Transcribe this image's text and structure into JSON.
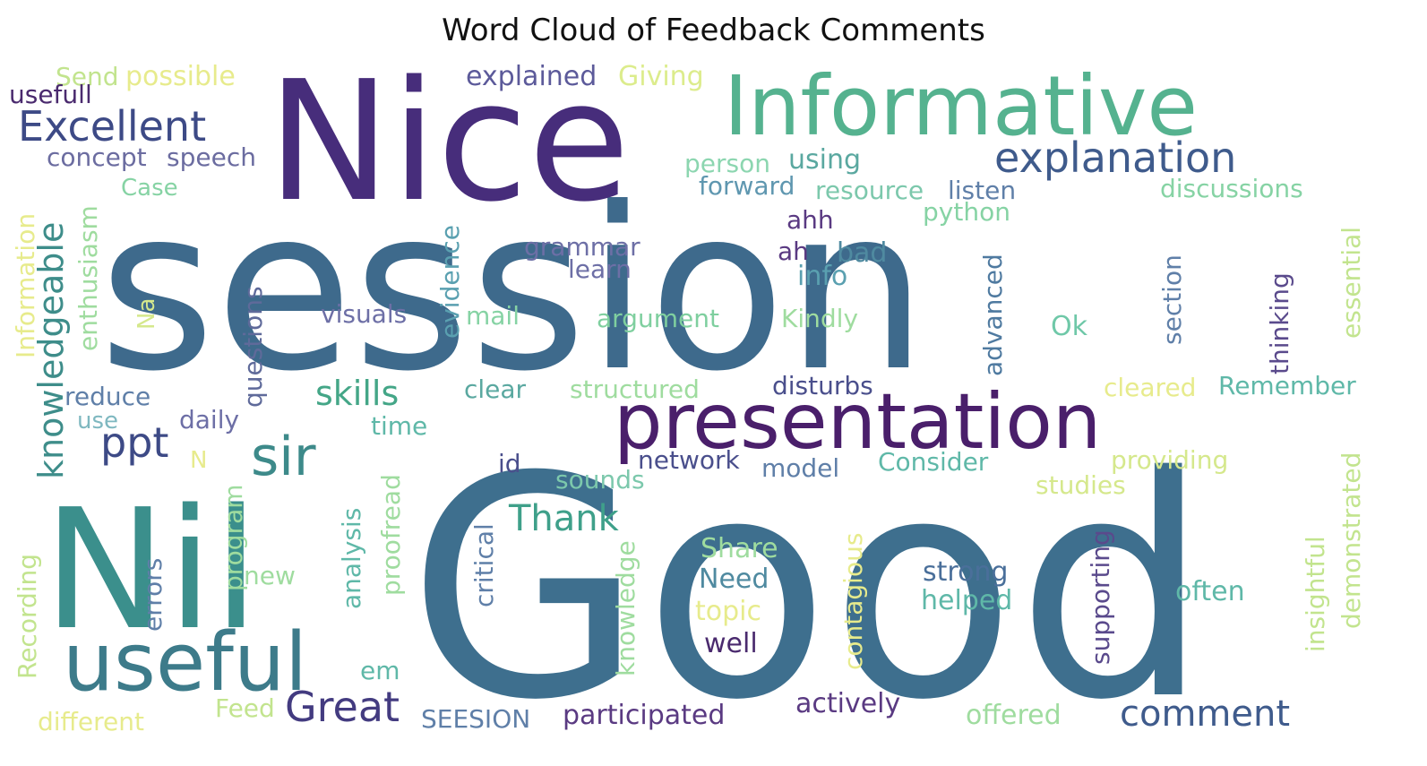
{
  "title": "Word Cloud of Feedback Comments",
  "palette": [
    "#440154",
    "#3b528b",
    "#21918c",
    "#5ec962",
    "#fde725"
  ],
  "words": [
    {
      "text": "session",
      "color": "#3e6a8c"
    },
    {
      "text": "Good",
      "color": "#3e6f8e"
    },
    {
      "text": "Nice",
      "color": "#472d7b"
    },
    {
      "text": "Informative",
      "color": "#55b28f"
    },
    {
      "text": "Nil",
      "color": "#3b8f8c"
    },
    {
      "text": "presentation",
      "color": "#4a1f6b"
    },
    {
      "text": "useful",
      "color": "#3d7b8a"
    },
    {
      "text": "explanation",
      "color": "#3f5b8c"
    },
    {
      "text": "Excellent",
      "color": "#3d4a86"
    },
    {
      "text": "sir",
      "color": "#3d8a8a"
    },
    {
      "text": "Great",
      "color": "#433b80"
    },
    {
      "text": "ppt",
      "color": "#3d4a86"
    },
    {
      "text": "knowledgeable",
      "color": "#3e8d8a"
    },
    {
      "text": "skills",
      "color": "#44a687"
    },
    {
      "text": "Thank",
      "color": "#3fa08a"
    },
    {
      "text": "comment",
      "color": "#3f5b8c"
    },
    {
      "text": "explained",
      "color": "#5c5a9a"
    },
    {
      "text": "Giving",
      "color": "#dcec8c"
    },
    {
      "text": "possible",
      "color": "#e7eb8c"
    },
    {
      "text": "Send",
      "color": "#c2e48e"
    },
    {
      "text": "usefull",
      "color": "#4a2a6e"
    },
    {
      "text": "concept",
      "color": "#6b6ca0"
    },
    {
      "text": "speech",
      "color": "#6b6ca0"
    },
    {
      "text": "Case",
      "color": "#86d3a4"
    },
    {
      "text": "person",
      "color": "#8cd6b0"
    },
    {
      "text": "using",
      "color": "#5aa8a0"
    },
    {
      "text": "forward",
      "color": "#5f97b0"
    },
    {
      "text": "resource",
      "color": "#7cc8ac"
    },
    {
      "text": "listen",
      "color": "#5f7fa8"
    },
    {
      "text": "discussions",
      "color": "#86d3a4"
    },
    {
      "text": "ahh",
      "color": "#5a3a82"
    },
    {
      "text": "python",
      "color": "#86d3a4"
    },
    {
      "text": "grammar",
      "color": "#6d6fa6"
    },
    {
      "text": "learn",
      "color": "#6d6fa6"
    },
    {
      "text": "ah",
      "color": "#5a3a82"
    },
    {
      "text": "bad",
      "color": "#4f8aa0"
    },
    {
      "text": "info",
      "color": "#5aa0b0"
    },
    {
      "text": "visuals",
      "color": "#6d6fa6"
    },
    {
      "text": "mail",
      "color": "#86d3a4"
    },
    {
      "text": "argument",
      "color": "#7fcf9f"
    },
    {
      "text": "Kindly",
      "color": "#9fdc9f"
    },
    {
      "text": "Ok",
      "color": "#6fc8a8"
    },
    {
      "text": "reduce",
      "color": "#5f7fa8"
    },
    {
      "text": "use",
      "color": "#7fb8c0"
    },
    {
      "text": "daily",
      "color": "#6d6fa6"
    },
    {
      "text": "clear",
      "color": "#5aa8a0"
    },
    {
      "text": "structured",
      "color": "#9fdc9f"
    },
    {
      "text": "disturbs",
      "color": "#4a4f8c"
    },
    {
      "text": "cleared",
      "color": "#e7eb8c"
    },
    {
      "text": "Remember",
      "color": "#5fb8a8"
    },
    {
      "text": "time",
      "color": "#5fb8a8"
    },
    {
      "text": "id",
      "color": "#4a4f8c"
    },
    {
      "text": "network",
      "color": "#4a4f8c"
    },
    {
      "text": "model",
      "color": "#5f7fa8"
    },
    {
      "text": "Consider",
      "color": "#5fb8a8"
    },
    {
      "text": "providing",
      "color": "#d5e88c"
    },
    {
      "text": "N",
      "color": "#e7eb8c"
    },
    {
      "text": "sounds",
      "color": "#7cc8ac"
    },
    {
      "text": "studies",
      "color": "#d5e88c"
    },
    {
      "text": "Share",
      "color": "#9fdc9f"
    },
    {
      "text": "Need",
      "color": "#4f8aa0"
    },
    {
      "text": "strong",
      "color": "#4a6f9a"
    },
    {
      "text": "helped",
      "color": "#5fb8a8"
    },
    {
      "text": "often",
      "color": "#5fb8a8"
    },
    {
      "text": "topic",
      "color": "#e7eb8c"
    },
    {
      "text": "well",
      "color": "#4a2a6e"
    },
    {
      "text": "new",
      "color": "#9fdc9f"
    },
    {
      "text": "em",
      "color": "#5fb8a8"
    },
    {
      "text": "actively",
      "color": "#5a3a82"
    },
    {
      "text": "offered",
      "color": "#9fdc9f"
    },
    {
      "text": "Feed",
      "color": "#c2e48e"
    },
    {
      "text": "SEESION",
      "color": "#5f7fa8"
    },
    {
      "text": "participated",
      "color": "#5a3a82"
    },
    {
      "text": "different",
      "color": "#e7eb8c"
    },
    {
      "text": "Information",
      "color": "#e7eb8c"
    },
    {
      "text": "enthusiasm",
      "color": "#9fdc9f"
    },
    {
      "text": "Na",
      "color": "#d5e88c"
    },
    {
      "text": "questions",
      "color": "#5f6a9a"
    },
    {
      "text": "evidence",
      "color": "#5aa0b0"
    },
    {
      "text": "advanced",
      "color": "#4f7aa0"
    },
    {
      "text": "section",
      "color": "#5f7fa8"
    },
    {
      "text": "thinking",
      "color": "#5a4a8c"
    },
    {
      "text": "essential",
      "color": "#c2e48e"
    },
    {
      "text": "Recording",
      "color": "#c2e48e"
    },
    {
      "text": "errors",
      "color": "#5f7fa8"
    },
    {
      "text": "program",
      "color": "#9fdc9f"
    },
    {
      "text": "analysis",
      "color": "#5fb8a8"
    },
    {
      "text": "proofread",
      "color": "#9fdc9f"
    },
    {
      "text": "critical",
      "color": "#5f7fa8"
    },
    {
      "text": "knowledge",
      "color": "#9fdc9f"
    },
    {
      "text": "contagious",
      "color": "#e7eb8c"
    },
    {
      "text": "supporting",
      "color": "#5a4a8c"
    },
    {
      "text": "insightful",
      "color": "#c2e48e"
    },
    {
      "text": "demonstrated",
      "color": "#c2e48e"
    }
  ]
}
